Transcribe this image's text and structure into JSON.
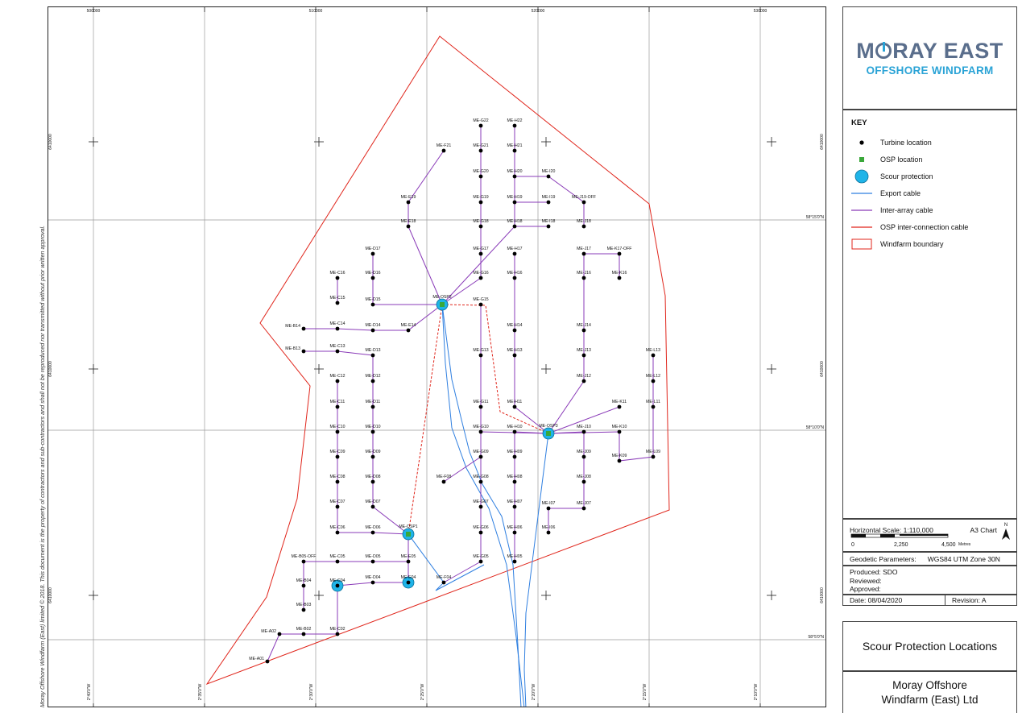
{
  "map": {
    "easting_ticks": [
      "500000",
      "510000",
      "520000",
      "530000"
    ],
    "northing_ticks": [
      "6410000",
      "6410000",
      "6410000"
    ],
    "lat_labels": [
      "58°15'0\"N",
      "58°10'0\"N",
      "58°5'0\"N"
    ],
    "lon_labels": [
      "2°40'0\"W",
      "2°35'0\"W",
      "2°30'0\"W",
      "2°25'0\"W",
      "2°20'0\"W",
      "2°15'0\"W",
      "2°10'0\"W"
    ],
    "turbine_color": "#000000",
    "osp_color": "#3aa83a",
    "scour_color": "#1fb4e8",
    "export_cable_color": "#2f7fe0",
    "inter_array_color": "#8a3bb8",
    "osp_interconnect_color": "#e0251b",
    "boundary_color": "#e0251b",
    "turbines": [
      {
        "id": "ME-A01"
      },
      {
        "id": "ME-A02"
      },
      {
        "id": "ME-B02"
      },
      {
        "id": "ME-B03"
      },
      {
        "id": "ME-B04"
      },
      {
        "id": "ME-B05-OFF"
      },
      {
        "id": "ME-B13"
      },
      {
        "id": "ME-B14"
      },
      {
        "id": "ME-C02"
      },
      {
        "id": "ME-C04"
      },
      {
        "id": "ME-C05"
      },
      {
        "id": "ME-C06"
      },
      {
        "id": "ME-C07"
      },
      {
        "id": "ME-C08"
      },
      {
        "id": "ME-C09"
      },
      {
        "id": "ME-C10"
      },
      {
        "id": "ME-C11"
      },
      {
        "id": "ME-C12"
      },
      {
        "id": "ME-C13"
      },
      {
        "id": "ME-C14"
      },
      {
        "id": "ME-C15"
      },
      {
        "id": "ME-C16"
      },
      {
        "id": "ME-D04"
      },
      {
        "id": "ME-D05"
      },
      {
        "id": "ME-D06"
      },
      {
        "id": "ME-D07"
      },
      {
        "id": "ME-D08"
      },
      {
        "id": "ME-D09"
      },
      {
        "id": "ME-D10"
      },
      {
        "id": "ME-D11"
      },
      {
        "id": "ME-D12"
      },
      {
        "id": "ME-D13"
      },
      {
        "id": "ME-D14"
      },
      {
        "id": "ME-D15"
      },
      {
        "id": "ME-D16"
      },
      {
        "id": "ME-D17"
      },
      {
        "id": "ME-E04"
      },
      {
        "id": "ME-E05"
      },
      {
        "id": "ME-E14"
      },
      {
        "id": "ME-E18"
      },
      {
        "id": "ME-E19"
      },
      {
        "id": "ME-F04"
      },
      {
        "id": "ME-F08"
      },
      {
        "id": "ME-F21"
      },
      {
        "id": "ME-G05"
      },
      {
        "id": "ME-G06"
      },
      {
        "id": "ME-G07"
      },
      {
        "id": "ME-G08"
      },
      {
        "id": "ME-G09"
      },
      {
        "id": "ME-G10"
      },
      {
        "id": "ME-G11"
      },
      {
        "id": "ME-G13"
      },
      {
        "id": "ME-G15"
      },
      {
        "id": "ME-G16"
      },
      {
        "id": "ME-G17"
      },
      {
        "id": "ME-G18"
      },
      {
        "id": "ME-G19"
      },
      {
        "id": "ME-G20"
      },
      {
        "id": "ME-G21"
      },
      {
        "id": "ME-G22"
      },
      {
        "id": "ME-H05"
      },
      {
        "id": "ME-H06"
      },
      {
        "id": "ME-H07"
      },
      {
        "id": "ME-H08"
      },
      {
        "id": "ME-H09"
      },
      {
        "id": "ME-H10"
      },
      {
        "id": "ME-H11"
      },
      {
        "id": "ME-H13"
      },
      {
        "id": "ME-H14"
      },
      {
        "id": "ME-H16"
      },
      {
        "id": "ME-H17"
      },
      {
        "id": "ME-H18"
      },
      {
        "id": "ME-H19"
      },
      {
        "id": "ME-H20"
      },
      {
        "id": "ME-H21"
      },
      {
        "id": "ME-H22"
      },
      {
        "id": "ME-I06"
      },
      {
        "id": "ME-I07"
      },
      {
        "id": "ME-I18"
      },
      {
        "id": "ME-I19"
      },
      {
        "id": "ME-I20"
      },
      {
        "id": "ME-J07"
      },
      {
        "id": "ME-J08"
      },
      {
        "id": "ME-J09"
      },
      {
        "id": "ME-J10"
      },
      {
        "id": "ME-J12"
      },
      {
        "id": "ME-J13"
      },
      {
        "id": "ME-J14"
      },
      {
        "id": "ME-J16"
      },
      {
        "id": "ME-J17"
      },
      {
        "id": "ME-J18"
      },
      {
        "id": "ME-J19-OFF"
      },
      {
        "id": "ME-K09"
      },
      {
        "id": "ME-K10"
      },
      {
        "id": "ME-K11"
      },
      {
        "id": "ME-K16"
      },
      {
        "id": "ME-K17-OFF"
      },
      {
        "id": "ME-L09"
      },
      {
        "id": "ME-L11"
      },
      {
        "id": "ME-L12"
      },
      {
        "id": "ME-L13"
      }
    ],
    "osps": [
      {
        "id": "ME-OSP1"
      },
      {
        "id": "ME-OSP2"
      },
      {
        "id": "ME-OSP3"
      }
    ],
    "scour_sites": [
      "ME-C04",
      "ME-E04",
      "ME-OSP1",
      "ME-OSP2",
      "ME-OSP3"
    ]
  },
  "side_note": "Moray Offshore Windfarm (East) limited © 2018. This document is the property of contractors and sub-contractors and shall not be reproduced nor transmitted without prior written approval.",
  "logo": {
    "line1_a": "M",
    "line1_b": "RAY EAST",
    "line2": "OFFSHORE WINDFARM"
  },
  "key": {
    "title": "KEY",
    "items": [
      {
        "label": "Turbine location"
      },
      {
        "label": "OSP location"
      },
      {
        "label": "Scour protection"
      },
      {
        "label": "Export cable"
      },
      {
        "label": "Inter-array cable"
      },
      {
        "label": "OSP inter-connection cable"
      },
      {
        "label": "Windfarm boundary"
      }
    ]
  },
  "scale": {
    "label": "Horizontal Scale:  1:110,000",
    "chart": "A3 Chart",
    "north": "N",
    "tick0": "0",
    "tick1": "2,250",
    "tick2": "4,500",
    "unit": "Metres"
  },
  "geodetic": {
    "label": "Geodetic Parameters:",
    "value": "WGS84 UTM Zone 30N"
  },
  "production": {
    "produced": "Produced: SDO",
    "reviewed": "Reviewed:",
    "approved": "Approved:"
  },
  "date": {
    "date": "Date: 08/04/2020",
    "revision": "Revision: A"
  },
  "title": "Scour Protection Locations",
  "company": {
    "line1": "Moray Offshore",
    "line2": "Windfarm (East) Ltd"
  }
}
